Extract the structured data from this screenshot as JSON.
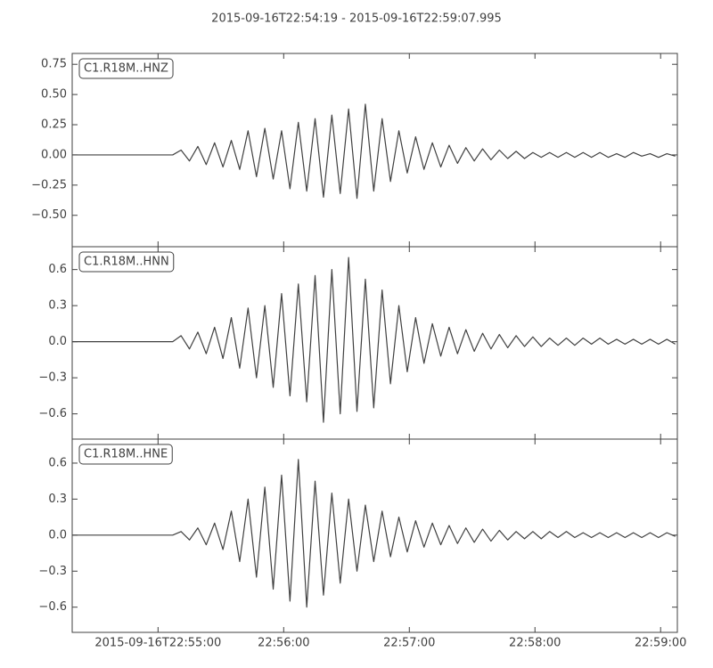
{
  "chart_data": [
    {
      "type": "line",
      "title": "2015-09-16T22:54:19  -  2015-09-16T22:59:07.995",
      "x": [
        "22:54:19",
        "22:54:23",
        "22:54:27",
        "22:54:31",
        "22:54:35",
        "22:54:39",
        "22:54:43",
        "22:54:47",
        "22:54:51",
        "22:54:55",
        "22:54:59",
        "22:55:03",
        "22:55:07",
        "22:55:11",
        "22:55:15",
        "22:55:19",
        "22:55:23",
        "22:55:27",
        "22:55:31",
        "22:55:35",
        "22:55:39",
        "22:55:43",
        "22:55:47",
        "22:55:51",
        "22:55:55",
        "22:55:59",
        "22:56:03",
        "22:56:07",
        "22:56:11",
        "22:56:15",
        "22:56:19",
        "22:56:23",
        "22:56:27",
        "22:56:31",
        "22:56:35",
        "22:56:39",
        "22:56:43",
        "22:56:47",
        "22:56:51",
        "22:56:55",
        "22:56:59",
        "22:57:03",
        "22:57:07",
        "22:57:11",
        "22:57:15",
        "22:57:19",
        "22:57:23",
        "22:57:27",
        "22:57:31",
        "22:57:35",
        "22:57:39",
        "22:57:43",
        "22:57:47",
        "22:57:51",
        "22:57:55",
        "22:57:59",
        "22:58:03",
        "22:58:07",
        "22:58:11",
        "22:58:15",
        "22:58:19",
        "22:58:23",
        "22:58:27",
        "22:58:31",
        "22:58:35",
        "22:58:39",
        "22:58:43",
        "22:58:47",
        "22:58:51",
        "22:58:55",
        "22:58:59",
        "22:59:03",
        "22:59:07"
      ],
      "series": [
        {
          "name": "C1.R18M..HNZ",
          "color": "#404040",
          "values": [
            0,
            0,
            0,
            0,
            0,
            0,
            0,
            0,
            0,
            0,
            0,
            0,
            0,
            0.04,
            -0.05,
            0.07,
            -0.08,
            0.1,
            -0.1,
            0.12,
            -0.12,
            0.2,
            -0.18,
            0.22,
            -0.2,
            0.2,
            -0.28,
            0.27,
            -0.3,
            0.3,
            -0.35,
            0.33,
            -0.32,
            0.38,
            -0.36,
            0.42,
            -0.3,
            0.3,
            -0.22,
            0.2,
            -0.15,
            0.15,
            -0.12,
            0.1,
            -0.1,
            0.08,
            -0.07,
            0.06,
            -0.05,
            0.05,
            -0.04,
            0.04,
            -0.03,
            0.03,
            -0.03,
            0.02,
            -0.02,
            0.02,
            -0.02,
            0.02,
            -0.02,
            0.02,
            -0.02,
            0.02,
            -0.02,
            0.01,
            -0.02,
            0.02,
            -0.01,
            0.01,
            -0.02,
            0.01,
            -0.01
          ]
        }
      ],
      "xlim": [
        "2015-09-16T22:54:19",
        "2015-09-16T22:59:07.995"
      ],
      "ylim": [
        -0.76,
        0.84
      ],
      "yticks": [
        {
          "value": -0.5,
          "label": "−0.50"
        },
        {
          "value": -0.25,
          "label": "−0.25"
        },
        {
          "value": 0,
          "label": "0.00"
        },
        0.25,
        {
          "value": 0.5,
          "label": "0.50"
        },
        0.75
      ]
    },
    {
      "type": "line",
      "x": [
        "22:54:19",
        "22:54:23",
        "22:54:27",
        "22:54:31",
        "22:54:35",
        "22:54:39",
        "22:54:43",
        "22:54:47",
        "22:54:51",
        "22:54:55",
        "22:54:59",
        "22:55:03",
        "22:55:07",
        "22:55:11",
        "22:55:15",
        "22:55:19",
        "22:55:23",
        "22:55:27",
        "22:55:31",
        "22:55:35",
        "22:55:39",
        "22:55:43",
        "22:55:47",
        "22:55:51",
        "22:55:55",
        "22:55:59",
        "22:56:03",
        "22:56:07",
        "22:56:11",
        "22:56:15",
        "22:56:19",
        "22:56:23",
        "22:56:27",
        "22:56:31",
        "22:56:35",
        "22:56:39",
        "22:56:43",
        "22:56:47",
        "22:56:51",
        "22:56:55",
        "22:56:59",
        "22:57:03",
        "22:57:07",
        "22:57:11",
        "22:57:15",
        "22:57:19",
        "22:57:23",
        "22:57:27",
        "22:57:31",
        "22:57:35",
        "22:57:39",
        "22:57:43",
        "22:57:47",
        "22:57:51",
        "22:57:55",
        "22:57:59",
        "22:58:03",
        "22:58:07",
        "22:58:11",
        "22:58:15",
        "22:58:19",
        "22:58:23",
        "22:58:27",
        "22:58:31",
        "22:58:35",
        "22:58:39",
        "22:58:43",
        "22:58:47",
        "22:58:51",
        "22:58:55",
        "22:58:59",
        "22:59:03",
        "22:59:07"
      ],
      "series": [
        {
          "name": "C1.R18M..HNN",
          "color": "#404040",
          "values": [
            0,
            0,
            0,
            0,
            0,
            0,
            0,
            0,
            0,
            0,
            0,
            0,
            0,
            0.05,
            -0.06,
            0.08,
            -0.1,
            0.12,
            -0.14,
            0.2,
            -0.22,
            0.28,
            -0.3,
            0.3,
            -0.38,
            0.4,
            -0.45,
            0.48,
            -0.5,
            0.55,
            -0.67,
            0.6,
            -0.6,
            0.7,
            -0.58,
            0.52,
            -0.55,
            0.43,
            -0.35,
            0.3,
            -0.25,
            0.2,
            -0.18,
            0.15,
            -0.12,
            0.12,
            -0.1,
            0.1,
            -0.08,
            0.07,
            -0.06,
            0.06,
            -0.05,
            0.05,
            -0.04,
            0.04,
            -0.04,
            0.03,
            -0.03,
            0.03,
            -0.03,
            0.03,
            -0.02,
            0.03,
            -0.02,
            0.02,
            -0.02,
            0.02,
            -0.02,
            0.02,
            -0.02,
            0.02,
            -0.02
          ]
        }
      ],
      "xlim": [
        "2015-09-16T22:54:19",
        "2015-09-16T22:59:07.995"
      ],
      "ylim": [
        -0.81,
        0.79
      ],
      "yticks": [
        {
          "value": -0.6,
          "label": "−0.6"
        },
        {
          "value": -0.3,
          "label": "−0.3"
        },
        {
          "value": 0,
          "label": "0.0"
        },
        0.3,
        0.6
      ]
    },
    {
      "type": "line",
      "x": [
        "22:54:19",
        "22:54:23",
        "22:54:27",
        "22:54:31",
        "22:54:35",
        "22:54:39",
        "22:54:43",
        "22:54:47",
        "22:54:51",
        "22:54:55",
        "22:54:59",
        "22:55:03",
        "22:55:07",
        "22:55:11",
        "22:55:15",
        "22:55:19",
        "22:55:23",
        "22:55:27",
        "22:55:31",
        "22:55:35",
        "22:55:39",
        "22:55:43",
        "22:55:47",
        "22:55:51",
        "22:55:55",
        "22:55:59",
        "22:56:03",
        "22:56:07",
        "22:56:11",
        "22:56:15",
        "22:56:19",
        "22:56:23",
        "22:56:27",
        "22:56:31",
        "22:56:35",
        "22:56:39",
        "22:56:43",
        "22:56:47",
        "22:56:51",
        "22:56:55",
        "22:56:59",
        "22:57:03",
        "22:57:07",
        "22:57:11",
        "22:57:15",
        "22:57:19",
        "22:57:23",
        "22:57:27",
        "22:57:31",
        "22:57:35",
        "22:57:39",
        "22:57:43",
        "22:57:47",
        "22:57:51",
        "22:57:55",
        "22:57:59",
        "22:58:03",
        "22:58:07",
        "22:58:11",
        "22:58:15",
        "22:58:19",
        "22:58:23",
        "22:58:27",
        "22:58:31",
        "22:58:35",
        "22:58:39",
        "22:58:43",
        "22:58:47",
        "22:58:51",
        "22:58:55",
        "22:58:59",
        "22:59:03",
        "22:59:07"
      ],
      "series": [
        {
          "name": "C1.R18M..HNE",
          "color": "#404040",
          "values": [
            0,
            0,
            0,
            0,
            0,
            0,
            0,
            0,
            0,
            0,
            0,
            0,
            0,
            0.03,
            -0.04,
            0.06,
            -0.08,
            0.1,
            -0.12,
            0.2,
            -0.22,
            0.3,
            -0.35,
            0.4,
            -0.45,
            0.5,
            -0.55,
            0.63,
            -0.6,
            0.45,
            -0.5,
            0.35,
            -0.4,
            0.3,
            -0.3,
            0.25,
            -0.22,
            0.2,
            -0.18,
            0.15,
            -0.14,
            0.12,
            -0.1,
            0.1,
            -0.08,
            0.08,
            -0.07,
            0.06,
            -0.06,
            0.05,
            -0.05,
            0.04,
            -0.04,
            0.03,
            -0.03,
            0.03,
            -0.03,
            0.03,
            -0.02,
            0.03,
            -0.02,
            0.02,
            -0.02,
            0.02,
            -0.02,
            0.02,
            -0.02,
            0.02,
            -0.02,
            0.02,
            -0.02,
            0.02,
            -0.01
          ]
        }
      ],
      "xlim": [
        "2015-09-16T22:54:19",
        "2015-09-16T22:59:07.995"
      ],
      "ylim": [
        -0.81,
        0.8
      ],
      "yticks": [
        {
          "value": -0.6,
          "label": "−0.6"
        },
        {
          "value": -0.3,
          "label": "−0.3"
        },
        {
          "value": 0,
          "label": "0.0"
        },
        0.3,
        0.6
      ],
      "xticks": [
        "2015-09-16T22:55:00",
        {
          "value": "22:56:00",
          "label": "22:56:00"
        },
        {
          "value": "22:57:00",
          "label": "22:57:00"
        },
        {
          "value": "22:58:00",
          "label": "22:58:00"
        },
        {
          "value": "22:59:00",
          "label": "22:59:00"
        }
      ]
    }
  ]
}
